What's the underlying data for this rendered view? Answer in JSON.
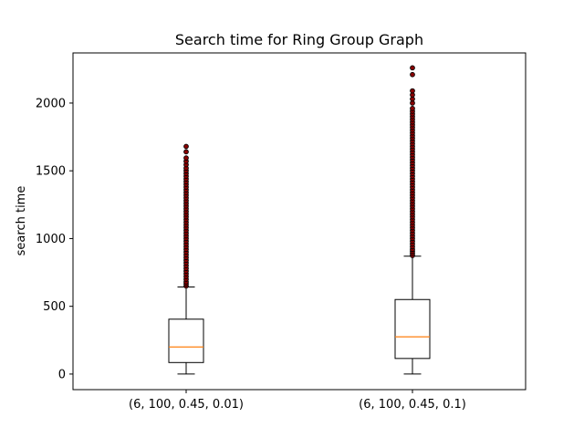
{
  "chart_data": {
    "type": "box",
    "title": "Search time for Ring Group Graph",
    "xlabel": "",
    "ylabel": "search time",
    "ylim": [
      -115,
      2370
    ],
    "yticks": [
      0,
      500,
      1000,
      1500,
      2000
    ],
    "categories": [
      "(6, 100, 0.45, 0.01)",
      "(6, 100, 0.45, 0.1)"
    ],
    "boxes": [
      {
        "whisker_low": 0,
        "q1": 85,
        "median": 200,
        "q3": 405,
        "whisker_high": 643,
        "outliers": [
          650,
          665,
          680,
          700,
          720,
          740,
          760,
          780,
          800,
          820,
          840,
          860,
          880,
          900,
          920,
          940,
          960,
          980,
          1000,
          1020,
          1040,
          1060,
          1080,
          1100,
          1120,
          1140,
          1160,
          1180,
          1200,
          1220,
          1240,
          1260,
          1280,
          1300,
          1320,
          1340,
          1360,
          1380,
          1400,
          1420,
          1440,
          1460,
          1480,
          1500,
          1520,
          1545,
          1570,
          1595,
          1640,
          1680
        ]
      },
      {
        "whisker_low": 0,
        "q1": 115,
        "median": 275,
        "q3": 550,
        "whisker_high": 870,
        "outliers": [
          875,
          890,
          905,
          920,
          940,
          960,
          980,
          1000,
          1020,
          1040,
          1060,
          1080,
          1100,
          1120,
          1140,
          1160,
          1180,
          1200,
          1220,
          1240,
          1260,
          1280,
          1300,
          1320,
          1340,
          1360,
          1380,
          1400,
          1420,
          1440,
          1460,
          1480,
          1500,
          1520,
          1540,
          1560,
          1580,
          1600,
          1620,
          1640,
          1660,
          1680,
          1700,
          1720,
          1740,
          1760,
          1780,
          1800,
          1820,
          1840,
          1860,
          1880,
          1900,
          1920,
          1940,
          1960,
          2000,
          2030,
          2060,
          2090,
          2210,
          2260
        ]
      }
    ],
    "colors": {
      "box": "#000000",
      "median": "#ff7f0e",
      "outlier_fill": "#8b0000",
      "outlier_edge": "#000000"
    }
  }
}
